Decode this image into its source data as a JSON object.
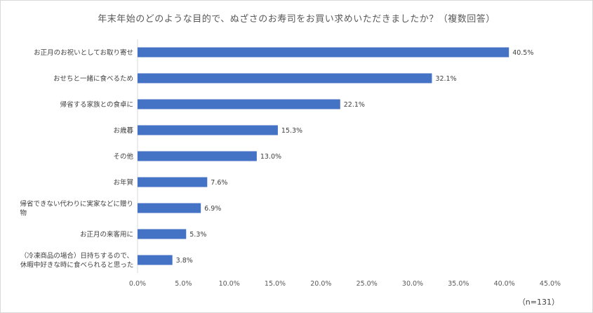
{
  "chart_data": {
    "type": "bar",
    "orientation": "horizontal",
    "title": "年末年始のどのような目的で、ぬざさのお寿司をお買い求めいただきましたか？（複数回答）",
    "sample_note": "（n=131）",
    "categories": [
      [
        "お正月のお祝いとしてお取り寄せ"
      ],
      [
        "おせちと一緒に食べるため"
      ],
      [
        "帰省する家族との食卓に"
      ],
      [
        "お歳暮"
      ],
      [
        "その他"
      ],
      [
        "お年賀"
      ],
      [
        "帰省できない代わりに実家などに贈り",
        "物"
      ],
      [
        "お正月の来客用に"
      ],
      [
        "（冷凍商品の場合）日持ちするので、",
        "休暇中好きな時に食べられると思った"
      ]
    ],
    "values": [
      40.5,
      32.1,
      22.1,
      15.3,
      13.0,
      7.6,
      6.9,
      5.3,
      3.8
    ],
    "value_labels": [
      "40.5%",
      "32.1%",
      "22.1%",
      "15.3%",
      "13.0%",
      "7.6%",
      "6.9%",
      "5.3%",
      "3.8%"
    ],
    "xlim": [
      0,
      45
    ],
    "xticks": [
      0,
      5,
      10,
      15,
      20,
      25,
      30,
      35,
      40,
      45
    ],
    "xtick_labels": [
      "0.0%",
      "5.0%",
      "10.0%",
      "15.0%",
      "20.0%",
      "25.0%",
      "30.0%",
      "35.0%",
      "40.0%",
      "45.0%"
    ],
    "gridlines": false,
    "bar_color": "#4472c4"
  }
}
